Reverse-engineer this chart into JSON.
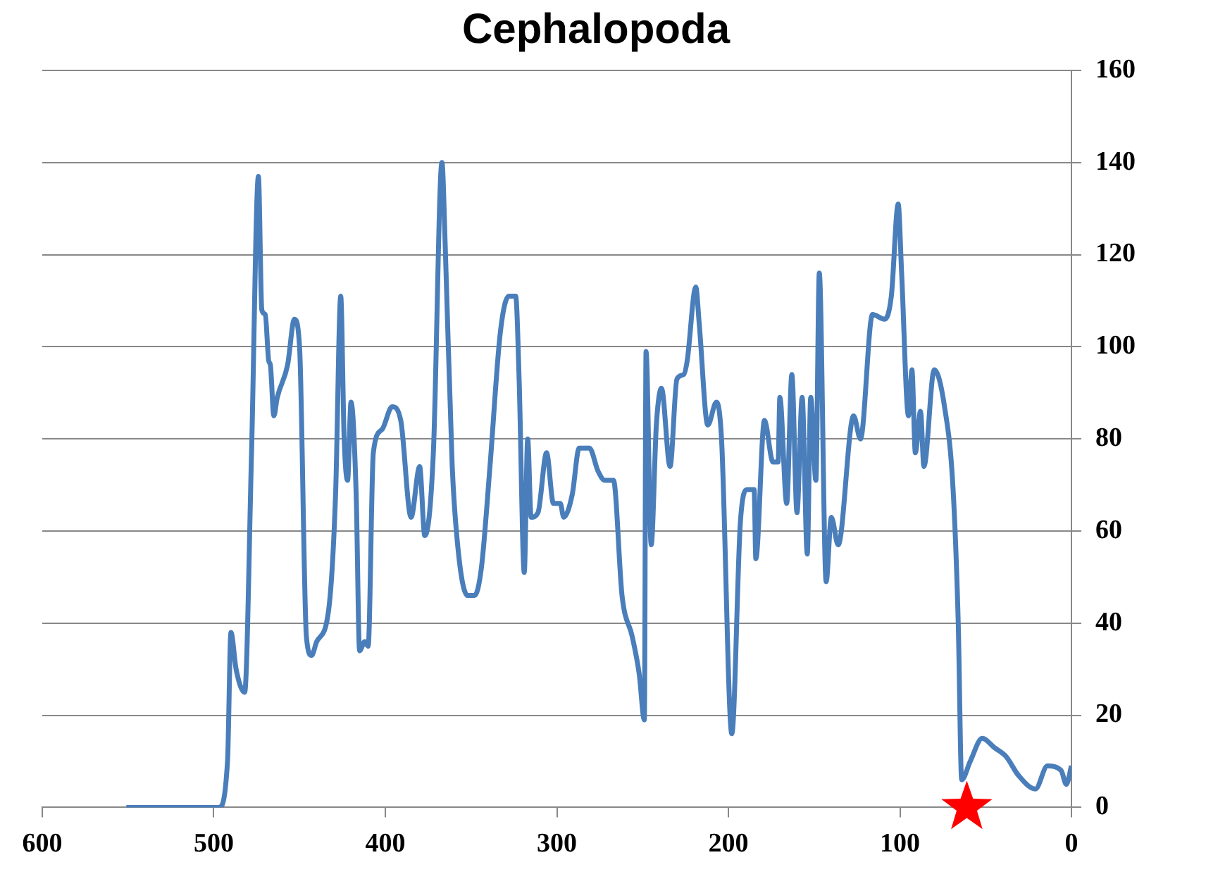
{
  "chart_data": {
    "type": "line",
    "title": "Cephalopoda",
    "xlim": [
      600,
      0
    ],
    "xticks": [
      600,
      500,
      400,
      300,
      200,
      100,
      0
    ],
    "ylim": [
      0,
      160
    ],
    "yticks": [
      0,
      20,
      40,
      60,
      80,
      100,
      120,
      140,
      160
    ],
    "grid": "y",
    "legend": false,
    "marker": "none",
    "series": [
      {
        "color": "#4a7ebb",
        "x": [
          551,
          497,
          492,
          490,
          487,
          482,
          478,
          474,
          472,
          470,
          468,
          467,
          465,
          463,
          457,
          453,
          450,
          446,
          443,
          440,
          433,
          429,
          426,
          424,
          422,
          420,
          417,
          415,
          412,
          410,
          407,
          402,
          396,
          391,
          385,
          380,
          377,
          372,
          367,
          365,
          361,
          357,
          352,
          348,
          344,
          339,
          333,
          328,
          324,
          322,
          319,
          317,
          315,
          311,
          306,
          302,
          298,
          296,
          291,
          287,
          281,
          276,
          272,
          267,
          262,
          256,
          252,
          249,
          248,
          245,
          242,
          239,
          234,
          230,
          226,
          224,
          219,
          217,
          212,
          207,
          204,
          198,
          193,
          189,
          185,
          184,
          179,
          174,
          171,
          170,
          166,
          163,
          160,
          157,
          154,
          152,
          149,
          147,
          143,
          140,
          136,
          127,
          123,
          116,
          109,
          105,
          101,
          99,
          95,
          93,
          91,
          88,
          86,
          80,
          74,
          69,
          66,
          64,
          59,
          52,
          45,
          38,
          31,
          21,
          14,
          6,
          3,
          0
        ],
        "values": [
          0,
          0,
          10,
          38,
          30,
          25,
          77,
          137,
          108,
          107,
          97,
          96,
          85,
          89,
          96,
          106,
          100,
          37,
          33,
          36,
          43,
          68,
          111,
          80,
          71,
          88,
          68,
          34,
          36,
          35,
          77,
          82,
          87,
          84,
          63,
          74,
          59,
          77,
          140,
          121,
          74,
          54,
          46,
          46,
          52,
          74,
          103,
          111,
          111,
          93,
          51,
          80,
          63,
          64,
          77,
          66,
          66,
          63,
          68,
          78,
          78,
          73,
          71,
          71,
          46,
          37,
          29,
          19,
          99,
          57,
          83,
          91,
          74,
          93,
          94,
          97,
          113,
          105,
          83,
          88,
          80,
          16,
          62,
          69,
          69,
          54,
          84,
          75,
          75,
          89,
          66,
          94,
          64,
          89,
          55,
          89,
          71,
          116,
          49,
          63,
          57,
          85,
          80,
          107,
          106,
          111,
          131,
          116,
          85,
          95,
          77,
          86,
          74,
          95,
          87,
          69,
          40,
          6,
          10,
          15,
          13,
          11,
          7,
          4,
          9,
          8,
          5,
          9
        ]
      },
      {
        "type": "scatter",
        "marker": "star",
        "color": "#ff0000",
        "x": [
          61
        ],
        "values": [
          0
        ]
      }
    ]
  }
}
